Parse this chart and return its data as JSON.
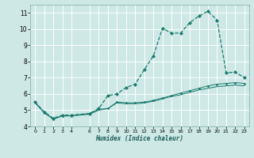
{
  "title": "",
  "xlabel": "Humidex (Indice chaleur)",
  "bg_color": "#cde8e5",
  "grid_color": "#ffffff",
  "line_color": "#1a7a6e",
  "xlim": [
    -0.5,
    23.5
  ],
  "ylim": [
    4,
    11.5
  ],
  "xticks": [
    0,
    1,
    2,
    3,
    4,
    6,
    7,
    8,
    9,
    10,
    11,
    12,
    13,
    14,
    15,
    16,
    17,
    18,
    19,
    20,
    21,
    22,
    23
  ],
  "yticks": [
    4,
    5,
    6,
    7,
    8,
    9,
    10,
    11
  ],
  "line1_x": [
    0,
    1,
    2,
    3,
    4,
    6,
    7,
    8,
    9,
    10,
    11,
    12,
    13,
    14,
    15,
    16,
    17,
    18,
    19,
    20,
    21,
    22,
    23
  ],
  "line1_y": [
    5.5,
    4.9,
    4.5,
    4.7,
    4.7,
    4.8,
    5.1,
    5.9,
    6.0,
    6.4,
    6.6,
    7.5,
    8.35,
    10.05,
    9.75,
    9.75,
    10.4,
    10.8,
    11.1,
    10.55,
    7.3,
    7.35,
    7.0
  ],
  "line2_x": [
    0,
    1,
    2,
    3,
    4,
    6,
    7,
    8,
    9,
    10,
    11,
    12,
    13,
    14,
    15,
    16,
    17,
    18,
    19,
    20,
    21,
    22,
    23
  ],
  "line2_y": [
    5.5,
    4.85,
    4.45,
    4.65,
    4.65,
    4.8,
    5.05,
    5.1,
    5.5,
    5.45,
    5.45,
    5.5,
    5.6,
    5.75,
    5.9,
    6.05,
    6.2,
    6.35,
    6.5,
    6.6,
    6.65,
    6.7,
    6.65
  ],
  "line3_x": [
    0,
    1,
    2,
    3,
    4,
    6,
    7,
    8,
    9,
    10,
    11,
    12,
    13,
    14,
    15,
    16,
    17,
    18,
    19,
    20,
    21,
    22,
    23
  ],
  "line3_y": [
    5.45,
    4.85,
    4.45,
    4.65,
    4.65,
    4.75,
    5.0,
    5.1,
    5.45,
    5.4,
    5.4,
    5.45,
    5.55,
    5.7,
    5.85,
    5.95,
    6.1,
    6.25,
    6.35,
    6.45,
    6.5,
    6.55,
    6.5
  ]
}
